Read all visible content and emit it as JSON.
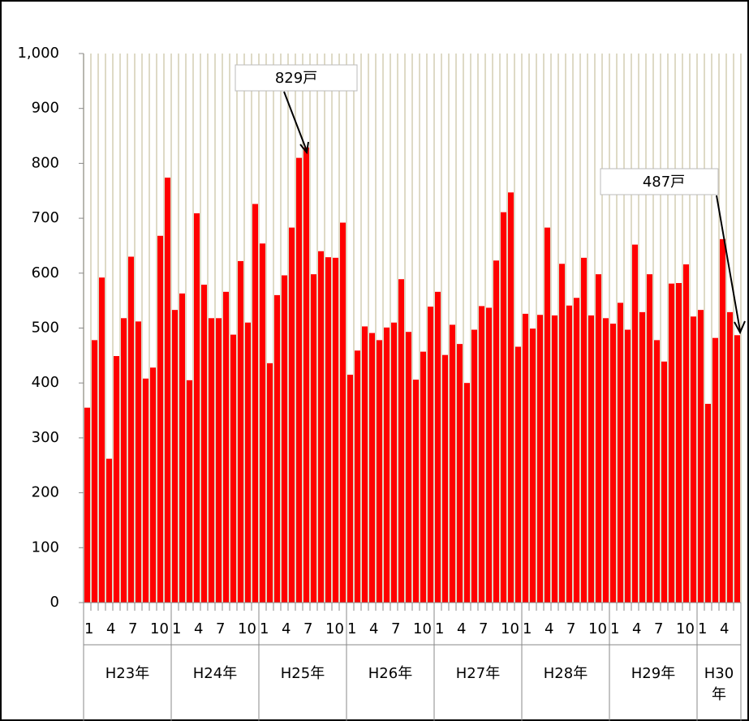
{
  "chart_data": {
    "type": "bar",
    "color": "#ff0000",
    "categories": [
      "1",
      null,
      null,
      "4",
      null,
      null,
      "7",
      null,
      null,
      "10",
      null,
      null,
      "1",
      null,
      null,
      "4",
      null,
      null,
      "7",
      null,
      null,
      "10",
      null,
      null,
      "1",
      null,
      null,
      "4",
      null,
      null,
      "7",
      null,
      null,
      "10",
      null,
      null,
      "1",
      null,
      null,
      "4",
      null,
      null,
      "7",
      null,
      null,
      "10",
      null,
      null,
      "1",
      null,
      null,
      "4",
      null,
      null,
      "7",
      null,
      null,
      "10",
      null,
      null,
      "1",
      null,
      null,
      "4",
      null,
      null,
      "7",
      null,
      null,
      "10",
      null,
      null,
      "1",
      null,
      null,
      "4",
      null,
      null,
      "7",
      null,
      null,
      "10",
      null,
      null,
      "1",
      null,
      null,
      "4",
      null,
      null
    ],
    "groups": [
      "H23年",
      "H24年",
      "H25年",
      "H26年",
      "H27年",
      "H28年",
      "H29年",
      "H30年"
    ],
    "values": [
      355,
      478,
      592,
      262,
      449,
      518,
      630,
      512,
      408,
      428,
      668,
      774,
      533,
      563,
      405,
      709,
      579,
      518,
      518,
      566,
      488,
      622,
      510,
      726,
      654,
      436,
      560,
      596,
      683,
      810,
      829,
      598,
      640,
      629,
      628,
      692,
      415,
      459,
      503,
      491,
      478,
      501,
      510,
      589,
      493,
      406,
      457,
      539,
      566,
      451,
      506,
      471,
      400,
      497,
      540,
      537,
      623,
      711,
      747,
      466,
      526,
      499,
      524,
      683,
      523,
      617,
      541,
      555,
      628,
      523,
      598,
      518,
      508,
      546,
      497,
      652,
      529,
      598,
      478,
      439,
      581,
      582,
      616,
      521,
      533,
      362,
      482,
      662,
      529,
      487
    ],
    "ylim": [
      0,
      1000
    ],
    "yticks": [
      0,
      100,
      200,
      300,
      400,
      500,
      600,
      700,
      800,
      900,
      {
        "value": 1000,
        "label": "1,000"
      }
    ],
    "annotations": [
      "829戸",
      "487戸"
    ]
  }
}
